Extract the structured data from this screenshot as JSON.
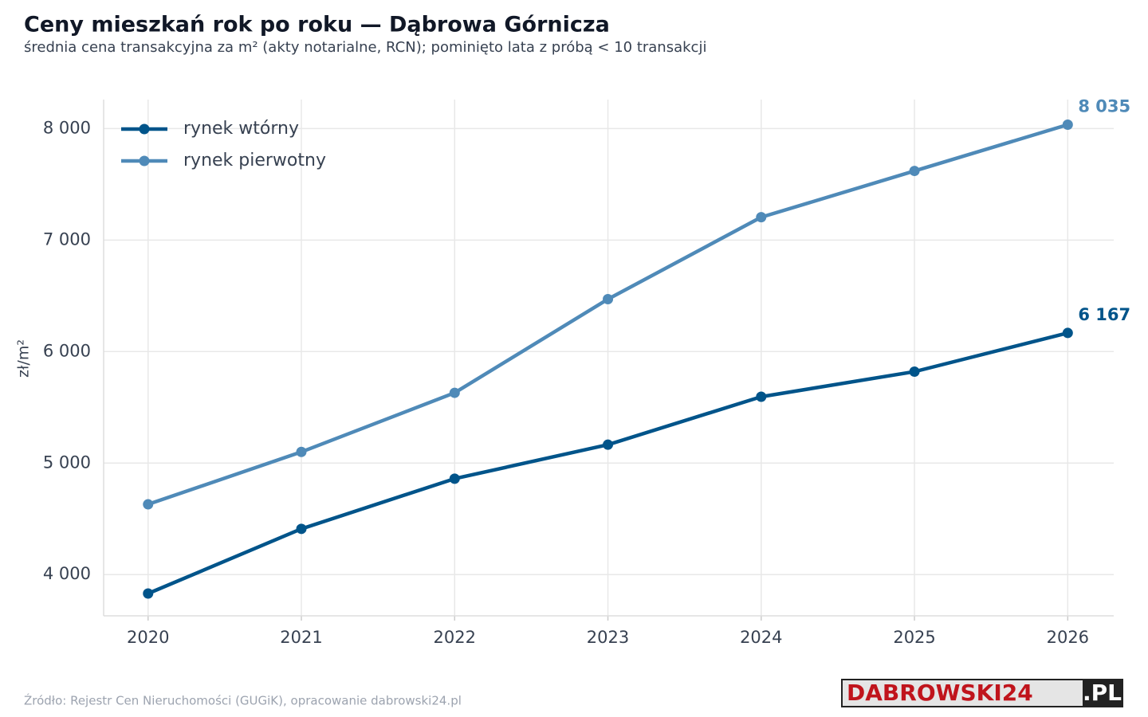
{
  "chart_data": {
    "type": "line",
    "title": "Ceny mieszkań rok po roku — Dąbrowa Górnicza",
    "subtitle": "średnia cena transakcyjna za m² (akty notarialne, RCN); pominięto lata z próbą < 10 transakcji",
    "y_label": "zł/m²",
    "x": [
      2020,
      2021,
      2022,
      2023,
      2024,
      2025,
      2026
    ],
    "series": [
      {
        "name": "rynek wtórny",
        "color": "#00548a",
        "values": [
          3830,
          4410,
          4860,
          5165,
          5595,
          5820,
          6167
        ],
        "value_labels": [
          null,
          null,
          null,
          null,
          null,
          null,
          "6 167"
        ]
      },
      {
        "name": "rynek pierwotny",
        "color": "#4f8ab8",
        "values": [
          4630,
          5100,
          5630,
          6470,
          7205,
          7620,
          8035
        ],
        "value_labels": [
          null,
          null,
          null,
          null,
          null,
          null,
          "8 035"
        ]
      }
    ],
    "xlim": [
      2019.71,
      2026.3
    ],
    "ylim": [
      3630,
      8260
    ],
    "xticks": [
      2020,
      2021,
      2022,
      2023,
      2024,
      2025,
      2026
    ],
    "yticks": [
      {
        "value": 4000,
        "label": "4 000"
      },
      {
        "value": 5000,
        "label": "5 000"
      },
      {
        "value": 6000,
        "label": "6 000"
      },
      {
        "value": 7000,
        "label": "7 000"
      },
      {
        "value": 8000,
        "label": "8 000"
      }
    ],
    "grid": true,
    "legend": "upper-left"
  },
  "source": "Źródło: Rejestr Cen Nieruchomości (GUGiK), opracowanie dabrowski24.pl",
  "logo": {
    "main": "DABROWSKI24",
    "suffix": ".PL"
  }
}
